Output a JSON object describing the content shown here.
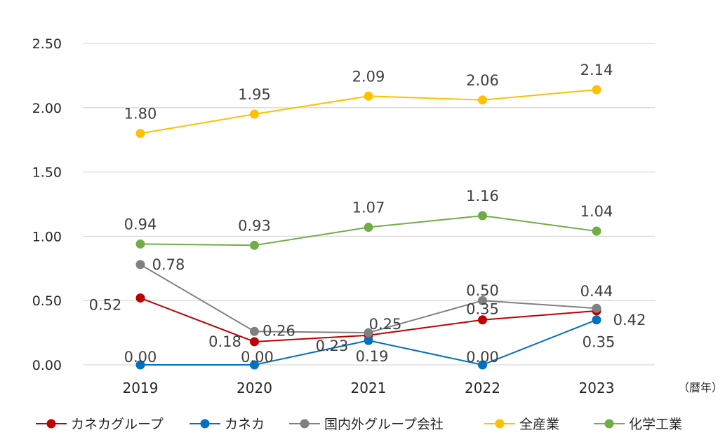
{
  "chart_data": {
    "type": "line",
    "categories": [
      "2019",
      "2020",
      "2021",
      "2022",
      "2023"
    ],
    "x_unit_label": "（暦年）",
    "ylim": [
      0,
      2.5
    ],
    "y_ticks": [
      "0.00",
      "0.50",
      "1.00",
      "1.50",
      "2.00",
      "2.50"
    ],
    "grid": true,
    "legend_position": "bottom",
    "series": [
      {
        "name": "カネカグループ",
        "color": "#c00000",
        "values": [
          0.52,
          0.18,
          0.23,
          0.35,
          0.42
        ],
        "labels": [
          "0.52",
          "0.18",
          "0.23",
          "0.35",
          "0.42"
        ]
      },
      {
        "name": "カネカ",
        "color": "#0070c0",
        "values": [
          0.0,
          0.0,
          0.19,
          0.0,
          0.35
        ],
        "labels": [
          "0.00",
          "0.00",
          "0.19",
          "0.00",
          "0.35"
        ]
      },
      {
        "name": "国内外グループ会社",
        "color": "#808080",
        "values": [
          0.78,
          0.26,
          0.25,
          0.5,
          0.44
        ],
        "labels": [
          "0.78",
          "0.26",
          "0.25",
          "0.50",
          "0.44"
        ]
      },
      {
        "name": "全産業",
        "color": "#ffc000",
        "values": [
          1.8,
          1.95,
          2.09,
          2.06,
          2.14
        ],
        "labels": [
          "1.80",
          "1.95",
          "2.09",
          "2.06",
          "2.14"
        ]
      },
      {
        "name": "化学工業",
        "color": "#70ad47",
        "values": [
          0.94,
          0.93,
          1.07,
          1.16,
          1.04
        ],
        "labels": [
          "0.94",
          "0.93",
          "1.07",
          "1.16",
          "1.04"
        ]
      }
    ]
  }
}
